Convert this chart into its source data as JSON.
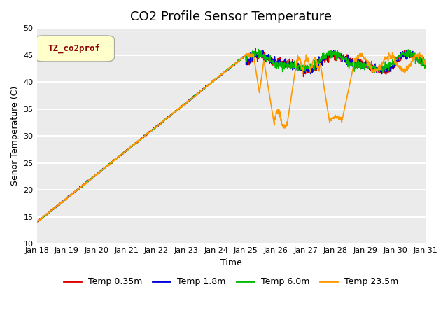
{
  "title": "CO2 Profile Sensor Temperature",
  "xlabel": "Time",
  "ylabel": "Senor Temperature (C)",
  "ylim": [
    10,
    50
  ],
  "x_tick_labels": [
    "Jan 18",
    "Jan 19",
    "Jan 20",
    "Jan 21",
    "Jan 22",
    "Jan 23",
    "Jan 24",
    "Jan 25",
    "Jan 26",
    "Jan 27",
    "Jan 28",
    "Jan 29",
    "Jan 30",
    "Jan 31"
  ],
  "y_ticks": [
    10,
    15,
    20,
    25,
    30,
    35,
    40,
    45,
    50
  ],
  "legend_label": "TZ_co2prof",
  "legend_text_color": "#8b0000",
  "legend_bg_color": "#ffffcc",
  "legend_border_color": "#aaaaaa",
  "series": [
    {
      "name": "Temp 0.35m",
      "color": "#dd0000",
      "lw": 1.0
    },
    {
      "name": "Temp 1.8m",
      "color": "#0000dd",
      "lw": 1.0
    },
    {
      "name": "Temp 6.0m",
      "color": "#00bb00",
      "lw": 1.0
    },
    {
      "name": "Temp 23.5m",
      "color": "#ff9900",
      "lw": 1.2
    }
  ],
  "plot_bg": "#ebebeb",
  "fig_bg": "#ffffff",
  "title_fontsize": 13,
  "axis_fontsize": 9,
  "tick_fontsize": 8,
  "grid_color": "#ffffff",
  "grid_lw": 1.5
}
